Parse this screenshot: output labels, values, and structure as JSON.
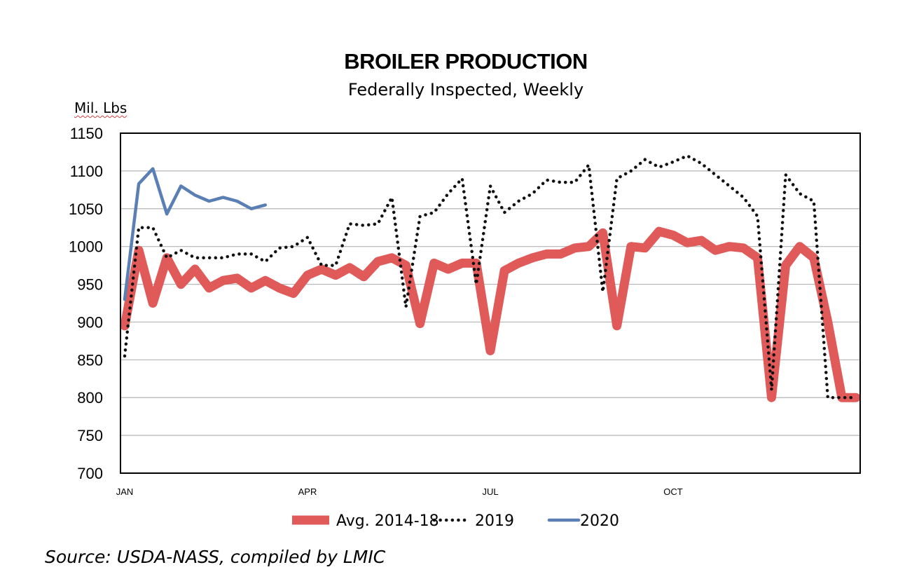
{
  "chart_data": {
    "type": "line",
    "title": "BROILER PRODUCTION",
    "subtitle": "Federally Inspected, Weekly",
    "ylabel": "Mil. Lbs",
    "ylim": [
      700,
      1150
    ],
    "yticks": [
      700,
      750,
      800,
      850,
      900,
      950,
      1000,
      1050,
      1100,
      1150
    ],
    "xlim": [
      1,
      53
    ],
    "xlabel_ticks": [
      {
        "week": 1,
        "label": "JAN"
      },
      {
        "week": 14,
        "label": "APR"
      },
      {
        "week": 27,
        "label": "JUL"
      },
      {
        "week": 40,
        "label": "OCT"
      }
    ],
    "grid": true,
    "legend_position": "bottom",
    "series": [
      {
        "name": "Avg. 2014-18",
        "color": "#e05a5a",
        "style": "solid-thick",
        "x": [
          1,
          2,
          3,
          4,
          5,
          6,
          7,
          8,
          9,
          10,
          11,
          12,
          13,
          14,
          15,
          16,
          17,
          18,
          19,
          20,
          21,
          22,
          23,
          24,
          25,
          26,
          27,
          28,
          29,
          30,
          31,
          32,
          33,
          34,
          35,
          36,
          37,
          38,
          39,
          40,
          41,
          42,
          43,
          44,
          45,
          46,
          47,
          48,
          49,
          50,
          51,
          52,
          53
        ],
        "values": [
          895,
          995,
          925,
          985,
          950,
          970,
          945,
          955,
          958,
          945,
          955,
          945,
          938,
          962,
          970,
          962,
          972,
          960,
          980,
          985,
          975,
          898,
          978,
          970,
          978,
          978,
          862,
          968,
          978,
          985,
          990,
          990,
          998,
          1000,
          1018,
          895,
          1000,
          998,
          1020,
          1015,
          1005,
          1008,
          995,
          1000,
          998,
          985,
          800,
          975,
          1000,
          985,
          900,
          800,
          800
        ]
      },
      {
        "name": "2019",
        "color": "#111111",
        "style": "dotted",
        "x": [
          1,
          2,
          3,
          4,
          5,
          6,
          7,
          8,
          9,
          10,
          11,
          12,
          13,
          14,
          15,
          16,
          17,
          18,
          19,
          20,
          21,
          22,
          23,
          24,
          25,
          26,
          27,
          28,
          29,
          30,
          31,
          32,
          33,
          34,
          35,
          36,
          37,
          38,
          39,
          40,
          41,
          42,
          43,
          44,
          45,
          46,
          47,
          48,
          49,
          50,
          51,
          52,
          53
        ],
        "values": [
          855,
          1025,
          1025,
          985,
          995,
          985,
          985,
          985,
          990,
          990,
          980,
          998,
          1000,
          1012,
          975,
          975,
          1030,
          1028,
          1030,
          1065,
          920,
          1040,
          1045,
          1070,
          1090,
          950,
          1080,
          1045,
          1060,
          1070,
          1088,
          1085,
          1085,
          1108,
          940,
          1090,
          1100,
          1115,
          1105,
          1112,
          1120,
          1110,
          1095,
          1080,
          1065,
          1040,
          810,
          1095,
          1070,
          1060,
          800,
          800,
          800
        ]
      },
      {
        "name": "2020",
        "color": "#5a7fb5",
        "style": "solid",
        "x": [
          1,
          2,
          3,
          4,
          5,
          6,
          7,
          8,
          9,
          10,
          11
        ],
        "values": [
          930,
          1083,
          1103,
          1043,
          1080,
          1068,
          1060,
          1065,
          1060,
          1050,
          1055
        ]
      }
    ],
    "source": "Source: USDA-NASS, compiled by LMIC"
  }
}
